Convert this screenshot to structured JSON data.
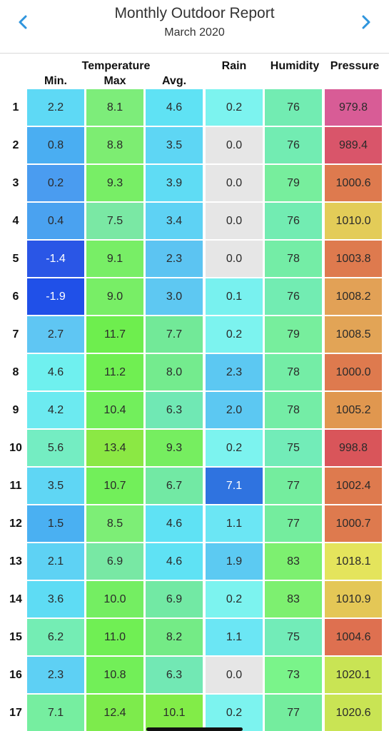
{
  "header": {
    "title": "Monthly Outdoor Report",
    "subtitle": "March 2020"
  },
  "icons": {
    "prev": "chevron-left-icon",
    "next": "chevron-right-icon"
  },
  "colors": {
    "accent": "#2f95dd"
  },
  "columns": {
    "group_label": "Temperature",
    "min": "Min.",
    "max": "Max",
    "avg": "Avg.",
    "rain": "Rain",
    "humidity": "Humidity",
    "pressure": "Pressure"
  },
  "rows": [
    {
      "day": "1",
      "min": "2.2",
      "max": "8.1",
      "avg": "4.6",
      "rain": "0.2",
      "humidity": "76",
      "pressure": "979.8"
    },
    {
      "day": "2",
      "min": "0.8",
      "max": "8.8",
      "avg": "3.5",
      "rain": "0.0",
      "humidity": "76",
      "pressure": "989.4"
    },
    {
      "day": "3",
      "min": "0.2",
      "max": "9.3",
      "avg": "3.9",
      "rain": "0.0",
      "humidity": "79",
      "pressure": "1000.6"
    },
    {
      "day": "4",
      "min": "0.4",
      "max": "7.5",
      "avg": "3.4",
      "rain": "0.0",
      "humidity": "76",
      "pressure": "1010.0"
    },
    {
      "day": "5",
      "min": "-1.4",
      "max": "9.1",
      "avg": "2.3",
      "rain": "0.0",
      "humidity": "78",
      "pressure": "1003.8"
    },
    {
      "day": "6",
      "min": "-1.9",
      "max": "9.0",
      "avg": "3.0",
      "rain": "0.1",
      "humidity": "76",
      "pressure": "1008.2"
    },
    {
      "day": "7",
      "min": "2.7",
      "max": "11.7",
      "avg": "7.7",
      "rain": "0.2",
      "humidity": "79",
      "pressure": "1008.5"
    },
    {
      "day": "8",
      "min": "4.6",
      "max": "11.2",
      "avg": "8.0",
      "rain": "2.3",
      "humidity": "78",
      "pressure": "1000.0"
    },
    {
      "day": "9",
      "min": "4.2",
      "max": "10.4",
      "avg": "6.3",
      "rain": "2.0",
      "humidity": "78",
      "pressure": "1005.2"
    },
    {
      "day": "10",
      "min": "5.6",
      "max": "13.4",
      "avg": "9.3",
      "rain": "0.2",
      "humidity": "75",
      "pressure": "998.8"
    },
    {
      "day": "11",
      "min": "3.5",
      "max": "10.7",
      "avg": "6.7",
      "rain": "7.1",
      "humidity": "77",
      "pressure": "1002.4"
    },
    {
      "day": "12",
      "min": "1.5",
      "max": "8.5",
      "avg": "4.6",
      "rain": "1.1",
      "humidity": "77",
      "pressure": "1000.7"
    },
    {
      "day": "13",
      "min": "2.1",
      "max": "6.9",
      "avg": "4.6",
      "rain": "1.9",
      "humidity": "83",
      "pressure": "1018.1"
    },
    {
      "day": "14",
      "min": "3.6",
      "max": "10.0",
      "avg": "6.9",
      "rain": "0.2",
      "humidity": "83",
      "pressure": "1010.9"
    },
    {
      "day": "15",
      "min": "6.2",
      "max": "11.0",
      "avg": "8.2",
      "rain": "1.1",
      "humidity": "75",
      "pressure": "1004.6"
    },
    {
      "day": "16",
      "min": "2.3",
      "max": "10.8",
      "avg": "6.3",
      "rain": "0.0",
      "humidity": "73",
      "pressure": "1020.1"
    },
    {
      "day": "17",
      "min": "7.1",
      "max": "12.4",
      "avg": "10.1",
      "rain": "0.2",
      "humidity": "77",
      "pressure": "1020.6"
    }
  ],
  "cell_colors": [
    {
      "min": "#5ed9f5",
      "max": "#7ded7a",
      "avg": "#5fe2f4",
      "rain": "#7cf3ef",
      "humidity": "#72ecb2",
      "pressure": "#d85c96"
    },
    {
      "min": "#4aaef2",
      "max": "#7ded72",
      "avg": "#5ed6f4",
      "rain": "#e6e6e6",
      "humidity": "#72ecb2",
      "pressure": "#d9556a"
    },
    {
      "min": "#4a9cf0",
      "max": "#78ee66",
      "avg": "#5fdcf4",
      "rain": "#e6e6e6",
      "humidity": "#77ee9d",
      "pressure": "#de7a4e"
    },
    {
      "min": "#4aa2f0",
      "max": "#7ae8a4",
      "avg": "#5ed2f4",
      "rain": "#e6e6e6",
      "humidity": "#72ecb2",
      "pressure": "#e3cc58"
    },
    {
      "min": "#2a56e6",
      "max": "#78ee66",
      "avg": "#5cc4f2",
      "rain": "#e6e6e6",
      "humidity": "#74eda6",
      "pressure": "#de7a4e"
    },
    {
      "min": "#2050e8",
      "max": "#78ee66",
      "avg": "#5ec8f2",
      "rain": "#78f1ef",
      "humidity": "#72ecb2",
      "pressure": "#e2a156"
    },
    {
      "min": "#5fc6f3",
      "max": "#6eee4e",
      "avg": "#72e998",
      "rain": "#7cf3ef",
      "humidity": "#77ee9d",
      "pressure": "#e2a456"
    },
    {
      "min": "#6ff0ef",
      "max": "#70ef52",
      "avg": "#74eb8e",
      "rain": "#5cc8f2",
      "humidity": "#74eda6",
      "pressure": "#de7a4e"
    },
    {
      "min": "#6ceaf0",
      "max": "#72ef5c",
      "avg": "#70e8b4",
      "rain": "#5cc8f2",
      "humidity": "#74eda6",
      "pressure": "#e0974f"
    },
    {
      "min": "#74edc2",
      "max": "#8be844",
      "avg": "#76ee60",
      "rain": "#7cf3ef",
      "humidity": "#72ecb8",
      "pressure": "#d9555a"
    },
    {
      "min": "#5fd6f4",
      "max": "#72ef5a",
      "avg": "#72e9a4",
      "rain": "#2f73e0",
      "humidity": "#74ed9e",
      "pressure": "#de7a4e"
    },
    {
      "min": "#4ab0f2",
      "max": "#7dee76",
      "avg": "#5fe2f4",
      "rain": "#6be6f4",
      "humidity": "#74ed9e",
      "pressure": "#de7a4e"
    },
    {
      "min": "#5ed2f4",
      "max": "#78e8a4",
      "avg": "#5fe2f4",
      "rain": "#5ccaf2",
      "humidity": "#7df070",
      "pressure": "#e4e45c"
    },
    {
      "min": "#5edcf4",
      "max": "#74ee62",
      "avg": "#72e9a4",
      "rain": "#7cf3ef",
      "humidity": "#7df070",
      "pressure": "#e4c756"
    },
    {
      "min": "#74edb4",
      "max": "#70ef54",
      "avg": "#74eb86",
      "rain": "#6be6f4",
      "humidity": "#72ecb8",
      "pressure": "#de7050"
    },
    {
      "min": "#5ed0f4",
      "max": "#72ef58",
      "avg": "#72e8b4",
      "rain": "#e6e6e6",
      "humidity": "#7af48a",
      "pressure": "#c9e454"
    },
    {
      "min": "#76eea0",
      "max": "#7deb4c",
      "avg": "#82ec48",
      "rain": "#7cf3ef",
      "humidity": "#74ed9e",
      "pressure": "#c9e454"
    }
  ],
  "dark_text_cells": [
    {
      "row": 4,
      "col": "min"
    },
    {
      "row": 5,
      "col": "min"
    },
    {
      "row": 10,
      "col": "rain"
    }
  ]
}
